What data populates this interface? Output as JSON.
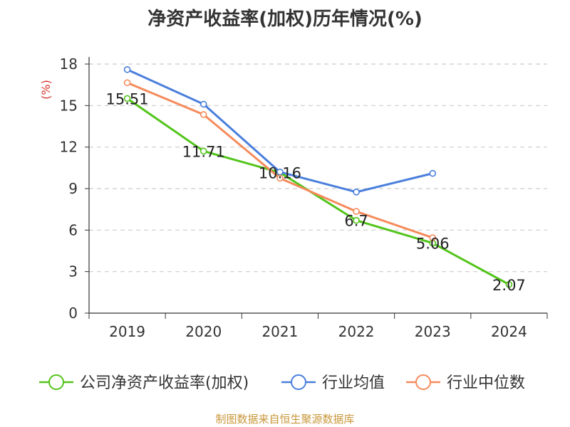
{
  "chart_data": {
    "type": "line",
    "title": "净资产收益率(加权)历年情况(%)",
    "ylabel": "(%)",
    "xlabel": "",
    "categories": [
      "2019",
      "2020",
      "2021",
      "2022",
      "2023",
      "2024"
    ],
    "ylim": [
      0,
      18
    ],
    "yticks": [
      0,
      3,
      6,
      9,
      12,
      15,
      18
    ],
    "grid": true,
    "legend_position": "bottom",
    "series": [
      {
        "name": "公司净资产收益率(加权)",
        "color": "#52c41a",
        "values": [
          15.51,
          11.71,
          10.16,
          6.7,
          5.06,
          2.07
        ],
        "labels": [
          "15.51",
          "11.71",
          "10.16",
          "6.7",
          "5.06",
          "2.07"
        ]
      },
      {
        "name": "行业均值",
        "color": "#4a7fdc",
        "values": [
          17.6,
          15.1,
          10.2,
          8.75,
          10.1,
          null
        ]
      },
      {
        "name": "行业中位数",
        "color": "#f58b5c",
        "values": [
          16.65,
          14.35,
          9.75,
          7.35,
          5.45,
          null
        ]
      }
    ]
  },
  "source": "制图数据来自恒生聚源数据库"
}
